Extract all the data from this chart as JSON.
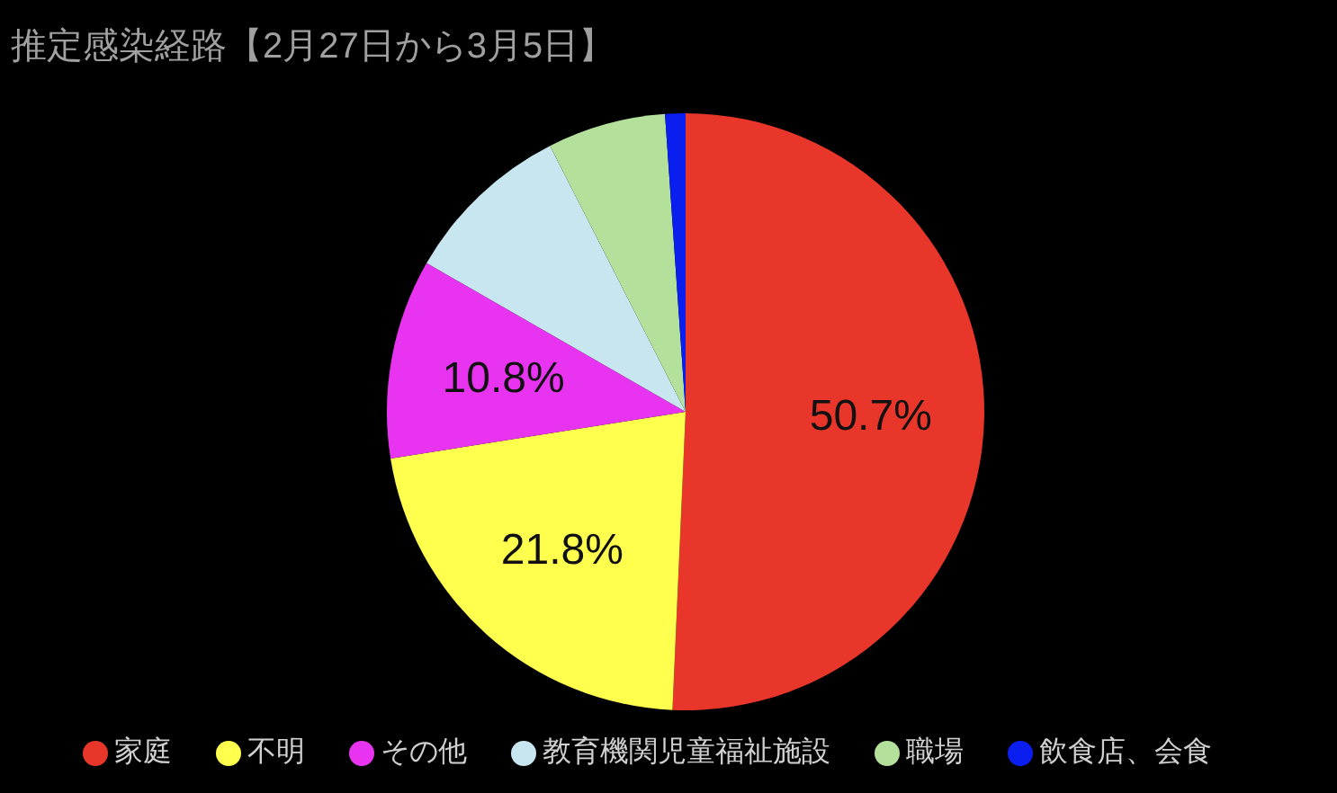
{
  "chart_data": {
    "type": "pie",
    "title": "推定感染経路【2月27日から3月5日】",
    "categories": [
      "家庭",
      "不明",
      "その他",
      "教育機関児童福祉施設",
      "職場",
      "飲食店、会食"
    ],
    "values": [
      50.7,
      21.8,
      10.8,
      9.2,
      6.4,
      1.1
    ],
    "colors": [
      "#e8372a",
      "#ffff4d",
      "#e834f0",
      "#c8e6f0",
      "#b3e09b",
      "#0a1ef0"
    ],
    "value_labels": [
      "50.7%",
      "21.8%",
      "10.8%",
      null,
      null,
      null
    ],
    "legend": "bottom"
  }
}
